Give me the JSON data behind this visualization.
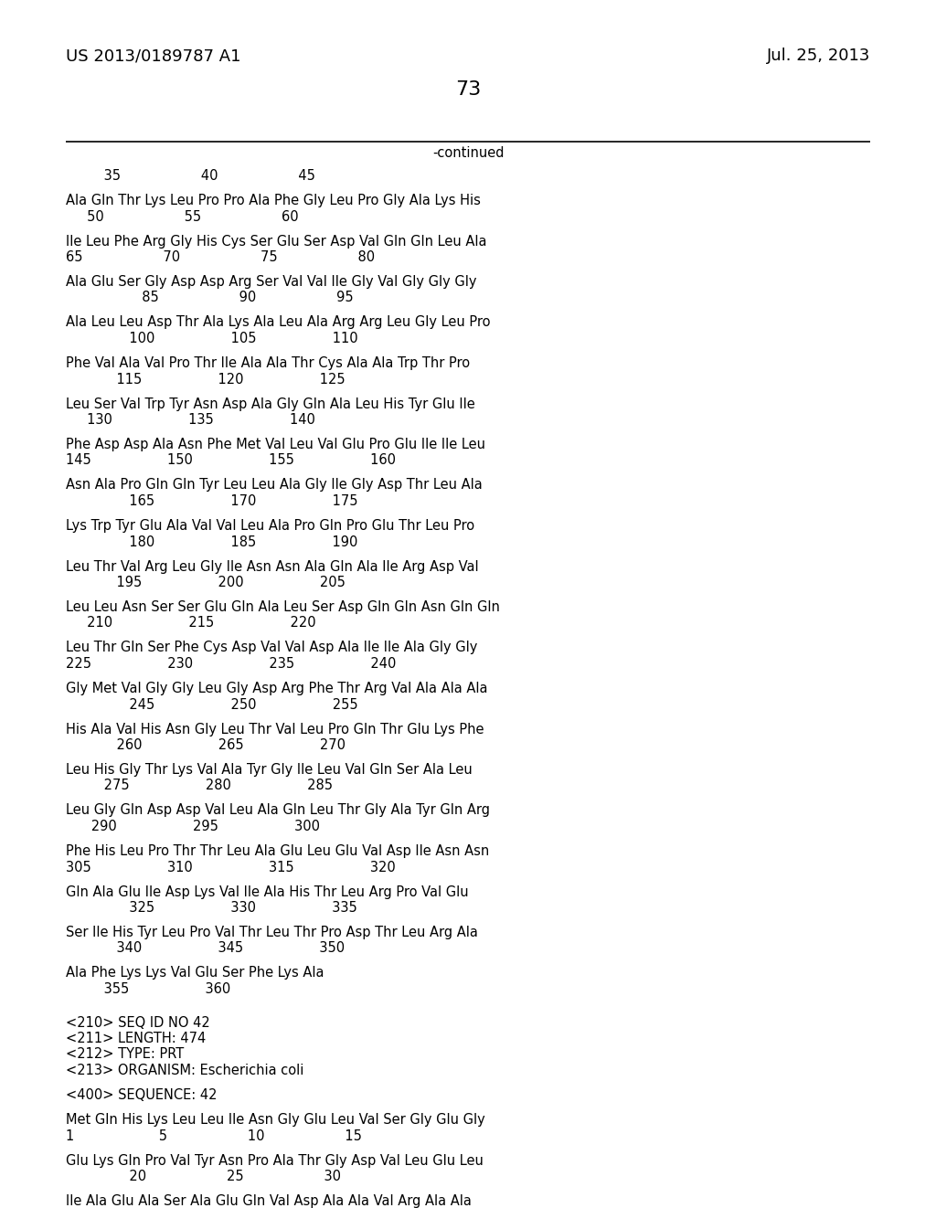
{
  "header_left": "US 2013/0189787 A1",
  "header_right": "Jul. 25, 2013",
  "page_number": "73",
  "continued_label": "-continued",
  "content": [
    {
      "type": "ruler",
      "text": "         35                   40                   45"
    },
    {
      "type": "blank"
    },
    {
      "type": "seq",
      "text": "Ala Gln Thr Lys Leu Pro Pro Ala Phe Gly Leu Pro Gly Ala Lys His"
    },
    {
      "type": "num",
      "text": "     50                   55                   60"
    },
    {
      "type": "blank"
    },
    {
      "type": "seq",
      "text": "Ile Leu Phe Arg Gly His Cys Ser Glu Ser Asp Val Gln Gln Leu Ala"
    },
    {
      "type": "num",
      "text": "65                   70                   75                   80"
    },
    {
      "type": "blank"
    },
    {
      "type": "seq",
      "text": "Ala Glu Ser Gly Asp Asp Arg Ser Val Val Ile Gly Val Gly Gly Gly"
    },
    {
      "type": "num",
      "text": "                  85                   90                   95"
    },
    {
      "type": "blank"
    },
    {
      "type": "seq",
      "text": "Ala Leu Leu Asp Thr Ala Lys Ala Leu Ala Arg Arg Leu Gly Leu Pro"
    },
    {
      "type": "num",
      "text": "               100                  105                  110"
    },
    {
      "type": "blank"
    },
    {
      "type": "seq",
      "text": "Phe Val Ala Val Pro Thr Ile Ala Ala Thr Cys Ala Ala Trp Thr Pro"
    },
    {
      "type": "num",
      "text": "            115                  120                  125"
    },
    {
      "type": "blank"
    },
    {
      "type": "seq",
      "text": "Leu Ser Val Trp Tyr Asn Asp Ala Gly Gln Ala Leu His Tyr Glu Ile"
    },
    {
      "type": "num",
      "text": "     130                  135                  140"
    },
    {
      "type": "blank"
    },
    {
      "type": "seq",
      "text": "Phe Asp Asp Ala Asn Phe Met Val Leu Val Glu Pro Glu Ile Ile Leu"
    },
    {
      "type": "num",
      "text": "145                  150                  155                  160"
    },
    {
      "type": "blank"
    },
    {
      "type": "seq",
      "text": "Asn Ala Pro Gln Gln Tyr Leu Leu Ala Gly Ile Gly Asp Thr Leu Ala"
    },
    {
      "type": "num",
      "text": "               165                  170                  175"
    },
    {
      "type": "blank"
    },
    {
      "type": "seq",
      "text": "Lys Trp Tyr Glu Ala Val Val Leu Ala Pro Gln Pro Glu Thr Leu Pro"
    },
    {
      "type": "num",
      "text": "               180                  185                  190"
    },
    {
      "type": "blank"
    },
    {
      "type": "seq",
      "text": "Leu Thr Val Arg Leu Gly Ile Asn Asn Ala Gln Ala Ile Arg Asp Val"
    },
    {
      "type": "num",
      "text": "            195                  200                  205"
    },
    {
      "type": "blank"
    },
    {
      "type": "seq",
      "text": "Leu Leu Asn Ser Ser Glu Gln Ala Leu Ser Asp Gln Gln Asn Gln Gln"
    },
    {
      "type": "num",
      "text": "     210                  215                  220"
    },
    {
      "type": "blank"
    },
    {
      "type": "seq",
      "text": "Leu Thr Gln Ser Phe Cys Asp Val Val Asp Ala Ile Ile Ala Gly Gly"
    },
    {
      "type": "num",
      "text": "225                  230                  235                  240"
    },
    {
      "type": "blank"
    },
    {
      "type": "seq",
      "text": "Gly Met Val Gly Gly Leu Gly Asp Arg Phe Thr Arg Val Ala Ala Ala"
    },
    {
      "type": "num",
      "text": "               245                  250                  255"
    },
    {
      "type": "blank"
    },
    {
      "type": "seq",
      "text": "His Ala Val His Asn Gly Leu Thr Val Leu Pro Gln Thr Glu Lys Phe"
    },
    {
      "type": "num",
      "text": "            260                  265                  270"
    },
    {
      "type": "blank"
    },
    {
      "type": "seq",
      "text": "Leu His Gly Thr Lys Val Ala Tyr Gly Ile Leu Val Gln Ser Ala Leu"
    },
    {
      "type": "num",
      "text": "         275                  280                  285"
    },
    {
      "type": "blank"
    },
    {
      "type": "seq",
      "text": "Leu Gly Gln Asp Asp Val Leu Ala Gln Leu Thr Gly Ala Tyr Gln Arg"
    },
    {
      "type": "num",
      "text": "      290                  295                  300"
    },
    {
      "type": "blank"
    },
    {
      "type": "seq",
      "text": "Phe His Leu Pro Thr Thr Leu Ala Glu Leu Glu Val Asp Ile Asn Asn"
    },
    {
      "type": "num",
      "text": "305                  310                  315                  320"
    },
    {
      "type": "blank"
    },
    {
      "type": "seq",
      "text": "Gln Ala Glu Ile Asp Lys Val Ile Ala His Thr Leu Arg Pro Val Glu"
    },
    {
      "type": "num",
      "text": "               325                  330                  335"
    },
    {
      "type": "blank"
    },
    {
      "type": "seq",
      "text": "Ser Ile His Tyr Leu Pro Val Thr Leu Thr Pro Asp Thr Leu Arg Ala"
    },
    {
      "type": "num",
      "text": "            340                  345                  350"
    },
    {
      "type": "blank"
    },
    {
      "type": "seq",
      "text": "Ala Phe Lys Lys Val Glu Ser Phe Lys Ala"
    },
    {
      "type": "num",
      "text": "         355                  360"
    },
    {
      "type": "blank"
    },
    {
      "type": "blank"
    },
    {
      "type": "meta",
      "text": "<210> SEQ ID NO 42"
    },
    {
      "type": "meta",
      "text": "<211> LENGTH: 474"
    },
    {
      "type": "meta",
      "text": "<212> TYPE: PRT"
    },
    {
      "type": "meta",
      "text": "<213> ORGANISM: Escherichia coli"
    },
    {
      "type": "blank"
    },
    {
      "type": "meta",
      "text": "<400> SEQUENCE: 42"
    },
    {
      "type": "blank"
    },
    {
      "type": "seq",
      "text": "Met Gln His Lys Leu Leu Ile Asn Gly Glu Leu Val Ser Gly Glu Gly"
    },
    {
      "type": "num",
      "text": "1                    5                   10                   15"
    },
    {
      "type": "blank"
    },
    {
      "type": "seq",
      "text": "Glu Lys Gln Pro Val Tyr Asn Pro Ala Thr Gly Asp Val Leu Glu Leu"
    },
    {
      "type": "num",
      "text": "               20                   25                   30"
    },
    {
      "type": "blank"
    },
    {
      "type": "seq",
      "text": "Ile Ala Glu Ala Ser Ala Glu Gln Val Asp Ala Ala Val Arg Ala Ala"
    }
  ],
  "bg_color": "#ffffff",
  "text_color": "#000000"
}
